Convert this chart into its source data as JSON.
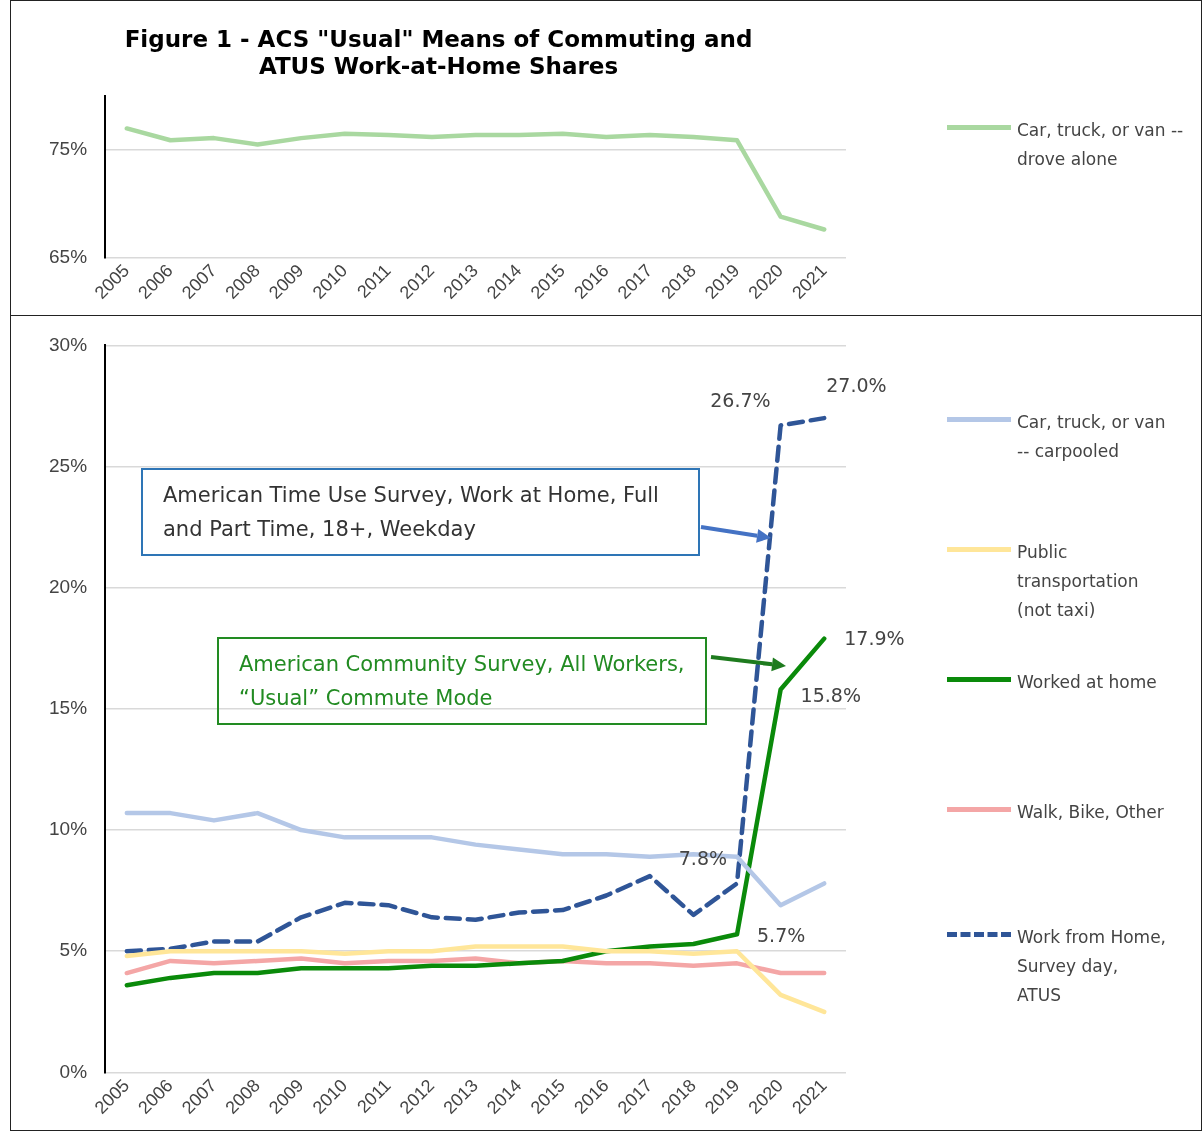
{
  "chart_data": [
    {
      "type": "line",
      "title": "Figure 1 - ACS \"Usual\" Means of Commuting and ATUS Work-at-Home Shares",
      "categories": [
        "2005",
        "2006",
        "2007",
        "2008",
        "2009",
        "2010",
        "2011",
        "2012",
        "2013",
        "2014",
        "2015",
        "2016",
        "2017",
        "2018",
        "2019",
        "2020",
        "2021"
      ],
      "series": [
        {
          "name": "Car, truck, or van -- drove alone",
          "color": "#a9d8a0",
          "values": [
            77.0,
            75.9,
            76.1,
            75.5,
            76.1,
            76.5,
            76.4,
            76.2,
            76.4,
            76.4,
            76.5,
            76.2,
            76.4,
            76.2,
            75.9,
            68.8,
            67.6
          ]
        }
      ],
      "ylim": [
        65,
        80
      ],
      "yticks": [
        {
          "value": 65,
          "label": "65%"
        },
        {
          "value": 75,
          "label": "75%"
        }
      ],
      "grid": "y",
      "legend": "right",
      "marker": "none"
    },
    {
      "type": "line",
      "categories": [
        "2005",
        "2006",
        "2007",
        "2008",
        "2009",
        "2010",
        "2011",
        "2012",
        "2013",
        "2014",
        "2015",
        "2016",
        "2017",
        "2018",
        "2019",
        "2020",
        "2021"
      ],
      "series": [
        {
          "name": "Car, truck, or van -- carpooled",
          "color": "#b4c7e7",
          "values": [
            10.7,
            10.7,
            10.4,
            10.7,
            10.0,
            9.7,
            9.7,
            9.7,
            9.4,
            9.2,
            9.0,
            9.0,
            8.9,
            9.0,
            8.9,
            6.9,
            7.8
          ]
        },
        {
          "name": "Public transportation (not taxi)",
          "color": "#ffe699",
          "values": [
            4.8,
            5.0,
            5.0,
            5.0,
            5.0,
            4.9,
            5.0,
            5.0,
            5.2,
            5.2,
            5.2,
            5.0,
            5.0,
            4.9,
            5.0,
            3.2,
            2.5
          ]
        },
        {
          "name": "Worked at home",
          "color": "#0a8a0a",
          "values": [
            3.6,
            3.9,
            4.1,
            4.1,
            4.3,
            4.3,
            4.3,
            4.4,
            4.4,
            4.5,
            4.6,
            5.0,
            5.2,
            5.3,
            5.7,
            15.8,
            17.9
          ],
          "value_labels": [
            null,
            null,
            null,
            null,
            null,
            null,
            null,
            null,
            null,
            null,
            null,
            null,
            null,
            null,
            "5.7%",
            "15.8%",
            "17.9%"
          ]
        },
        {
          "name": "Walk, Bike, Other",
          "color": "#f4a6a6",
          "values": [
            4.1,
            4.6,
            4.5,
            4.6,
            4.7,
            4.5,
            4.6,
            4.6,
            4.7,
            4.5,
            4.6,
            4.5,
            4.5,
            4.4,
            4.5,
            4.1,
            4.1
          ]
        },
        {
          "name": "Work from Home, Survey day, ATUS",
          "color": "#2f5597",
          "line_style": "dashed",
          "values": [
            5.0,
            5.1,
            5.4,
            5.4,
            6.4,
            7.0,
            6.9,
            6.4,
            6.3,
            6.6,
            6.7,
            7.3,
            8.1,
            6.5,
            7.8,
            26.7,
            27.0
          ],
          "value_labels": [
            null,
            null,
            null,
            null,
            null,
            null,
            null,
            null,
            null,
            null,
            null,
            null,
            null,
            null,
            "7.8%",
            "26.7%",
            "27.0%"
          ]
        }
      ],
      "ylim": [
        0,
        30
      ],
      "yticks": [
        {
          "value": 0,
          "label": "0%"
        },
        {
          "value": 5,
          "label": "5%"
        },
        {
          "value": 10,
          "label": "10%"
        },
        {
          "value": 15,
          "label": "15%"
        },
        {
          "value": 20,
          "label": "20%"
        },
        {
          "value": 25,
          "label": "25%"
        },
        {
          "value": 30,
          "label": "30%"
        }
      ],
      "grid": "y",
      "legend": "right",
      "marker": "none",
      "line_style": "solid",
      "annotations": [
        "American Time Use Survey, Work at Home, Full and Part Time, 18+, Weekday",
        "American Community Survey, All Workers, “Usual” Commute Mode"
      ]
    }
  ]
}
